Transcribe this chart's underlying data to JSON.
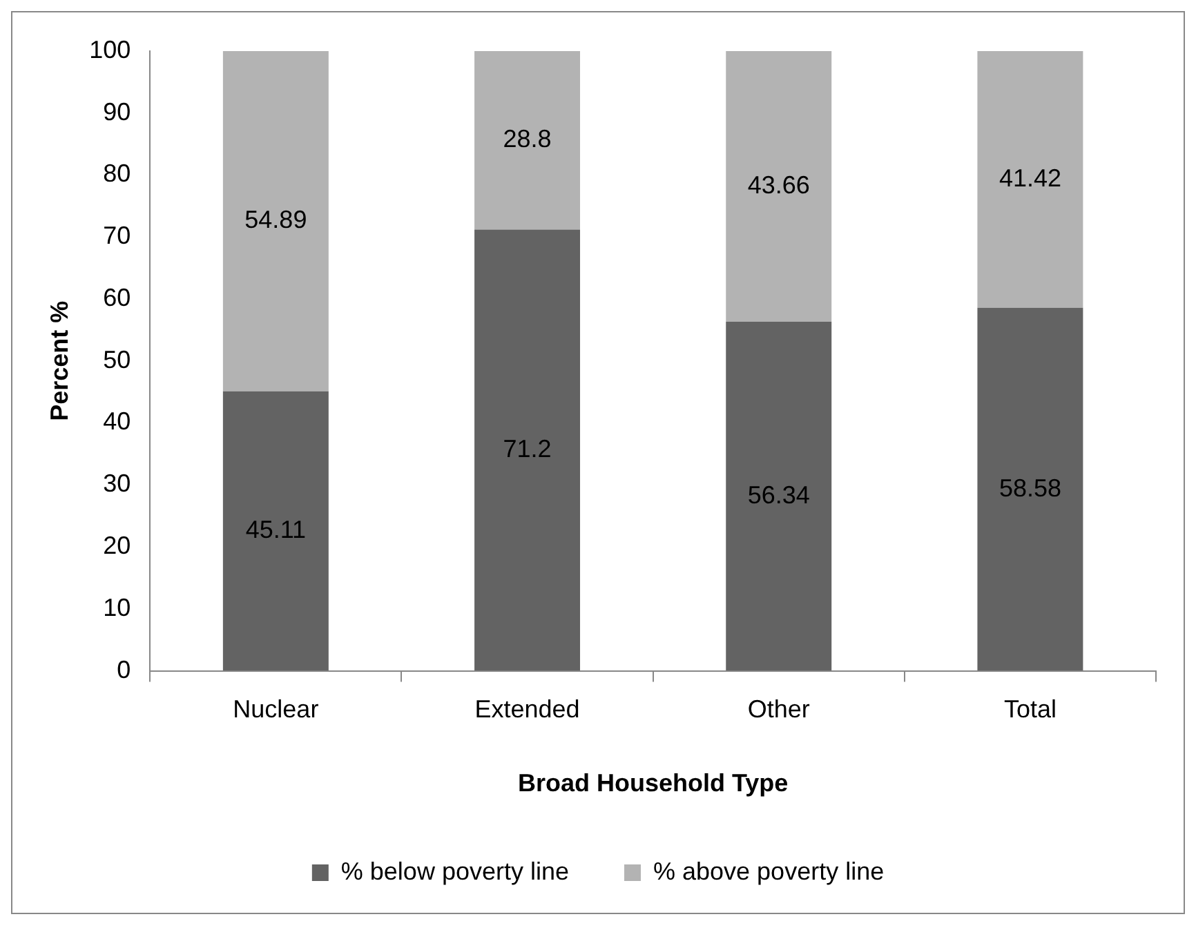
{
  "chart_data": {
    "type": "bar",
    "stacked": true,
    "xlabel": "Broad Household Type",
    "ylabel": "Percent %",
    "categories": [
      "Nuclear",
      "Extended",
      "Other",
      "Total"
    ],
    "series": [
      {
        "name": "% below poverty line",
        "color": "#636363",
        "values": [
          45.11,
          71.2,
          56.34,
          58.58
        ]
      },
      {
        "name": "% above poverty line",
        "color": "#b3b3b3",
        "values": [
          54.89,
          28.8,
          43.66,
          41.42
        ]
      }
    ],
    "ylim": [
      0,
      100
    ],
    "yticks": [
      0,
      10,
      20,
      30,
      40,
      50,
      60,
      70,
      80,
      90,
      100
    ],
    "grid": false,
    "legend": "bottom",
    "data_labels": true
  }
}
